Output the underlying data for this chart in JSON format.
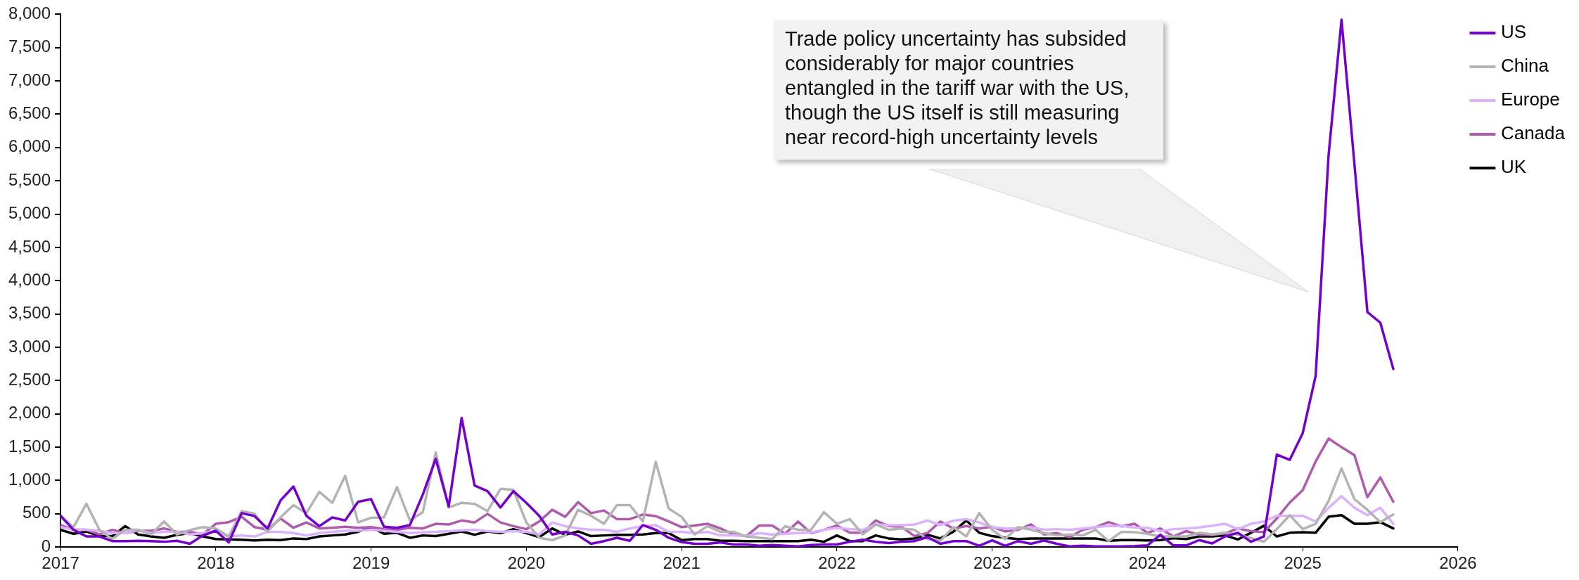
{
  "chart_data": {
    "type": "line",
    "x": [
      "2017-01",
      "2017-02",
      "2017-03",
      "2017-04",
      "2017-05",
      "2017-06",
      "2017-07",
      "2017-08",
      "2017-09",
      "2017-10",
      "2017-11",
      "2017-12",
      "2018-01",
      "2018-02",
      "2018-03",
      "2018-04",
      "2018-05",
      "2018-06",
      "2018-07",
      "2018-08",
      "2018-09",
      "2018-10",
      "2018-11",
      "2018-12",
      "2019-01",
      "2019-02",
      "2019-03",
      "2019-04",
      "2019-05",
      "2019-06",
      "2019-07",
      "2019-08",
      "2019-09",
      "2019-10",
      "2019-11",
      "2019-12",
      "2020-01",
      "2020-02",
      "2020-03",
      "2020-04",
      "2020-05",
      "2020-06",
      "2020-07",
      "2020-08",
      "2020-09",
      "2020-10",
      "2020-11",
      "2020-12",
      "2021-01",
      "2021-02",
      "2021-03",
      "2021-04",
      "2021-05",
      "2021-06",
      "2021-07",
      "2021-08",
      "2021-09",
      "2021-10",
      "2021-11",
      "2021-12",
      "2022-01",
      "2022-02",
      "2022-03",
      "2022-04",
      "2022-05",
      "2022-06",
      "2022-07",
      "2022-08",
      "2022-09",
      "2022-10",
      "2022-11",
      "2022-12",
      "2023-01",
      "2023-02",
      "2023-03",
      "2023-04",
      "2023-05",
      "2023-06",
      "2023-07",
      "2023-08",
      "2023-09",
      "2023-10",
      "2023-11",
      "2023-12",
      "2024-01",
      "2024-02",
      "2024-03",
      "2024-04",
      "2024-05",
      "2024-06",
      "2024-07",
      "2024-08",
      "2024-09",
      "2024-10",
      "2024-11",
      "2024-12",
      "2025-01",
      "2025-02",
      "2025-03",
      "2025-04",
      "2025-05",
      "2025-06",
      "2025-07",
      "2025-08"
    ],
    "series": [
      {
        "name": "US",
        "color": "#7400cc",
        "values": [
          470,
          260,
          160,
          160,
          90,
          90,
          95,
          90,
          80,
          95,
          50,
          175,
          245,
          70,
          510,
          465,
          280,
          700,
          910,
          470,
          315,
          445,
          400,
          680,
          720,
          305,
          290,
          330,
          790,
          1325,
          610,
          1940,
          925,
          840,
          595,
          840,
          665,
          470,
          190,
          230,
          175,
          50,
          90,
          140,
          95,
          330,
          260,
          140,
          75,
          50,
          50,
          70,
          40,
          40,
          20,
          30,
          20,
          10,
          30,
          40,
          40,
          80,
          110,
          80,
          60,
          80,
          90,
          150,
          50,
          90,
          90,
          20,
          100,
          20,
          90,
          50,
          100,
          50,
          10,
          20,
          10,
          10,
          10,
          15,
          25,
          185,
          25,
          25,
          105,
          55,
          160,
          215,
          80,
          160,
          1390,
          1310,
          1710,
          2570,
          5885,
          7920,
          5750,
          3530,
          3370,
          2675
        ]
      },
      {
        "name": "China",
        "color": "#b3b3b3",
        "values": [
          470,
          300,
          650,
          260,
          120,
          260,
          260,
          190,
          385,
          190,
          255,
          300,
          280,
          160,
          540,
          500,
          230,
          445,
          630,
          510,
          830,
          665,
          1070,
          370,
          440,
          445,
          900,
          400,
          525,
          1420,
          595,
          665,
          650,
          540,
          875,
          860,
          370,
          140,
          105,
          175,
          560,
          470,
          350,
          630,
          630,
          385,
          1280,
          580,
          455,
          190,
          315,
          230,
          230,
          160,
          140,
          120,
          315,
          260,
          260,
          525,
          350,
          420,
          190,
          340,
          260,
          280,
          260,
          120,
          95,
          300,
          160,
          510,
          260,
          120,
          300,
          260,
          210,
          175,
          190,
          175,
          260,
          90,
          230,
          225,
          200,
          160,
          160,
          160,
          215,
          190,
          215,
          190,
          135,
          80,
          270,
          480,
          270,
          350,
          695,
          1180,
          720,
          560,
          375,
          490
        ]
      },
      {
        "name": "Europe",
        "color": "#dab0ff",
        "values": [
          300,
          260,
          260,
          245,
          210,
          210,
          260,
          210,
          230,
          230,
          190,
          210,
          245,
          160,
          175,
          160,
          230,
          230,
          210,
          175,
          210,
          230,
          245,
          245,
          260,
          245,
          230,
          210,
          220,
          230,
          240,
          250,
          260,
          240,
          230,
          240,
          230,
          190,
          370,
          315,
          280,
          260,
          260,
          230,
          280,
          315,
          330,
          230,
          230,
          210,
          230,
          175,
          175,
          165,
          210,
          190,
          200,
          210,
          220,
          260,
          290,
          270,
          260,
          340,
          330,
          330,
          340,
          400,
          330,
          395,
          420,
          370,
          300,
          280,
          280,
          300,
          260,
          270,
          260,
          280,
          300,
          320,
          315,
          295,
          290,
          240,
          270,
          280,
          295,
          320,
          350,
          270,
          350,
          385,
          470,
          470,
          470,
          385,
          590,
          765,
          590,
          480,
          590,
          350
        ]
      },
      {
        "name": "Canada",
        "color": "#b05aae",
        "values": [
          330,
          260,
          260,
          190,
          260,
          210,
          245,
          245,
          280,
          230,
          230,
          190,
          350,
          375,
          455,
          300,
          260,
          430,
          290,
          370,
          280,
          290,
          305,
          290,
          300,
          270,
          260,
          290,
          280,
          350,
          340,
          400,
          370,
          500,
          370,
          315,
          270,
          385,
          560,
          455,
          675,
          510,
          550,
          420,
          420,
          490,
          465,
          385,
          300,
          325,
          350,
          280,
          190,
          165,
          325,
          325,
          200,
          385,
          210,
          260,
          325,
          215,
          215,
          400,
          315,
          305,
          165,
          210,
          385,
          280,
          315,
          280,
          305,
          235,
          260,
          340,
          190,
          210,
          150,
          260,
          300,
          375,
          310,
          350,
          215,
          280,
          160,
          240,
          185,
          185,
          205,
          280,
          240,
          225,
          430,
          670,
          855,
          1285,
          1630,
          1500,
          1380,
          750,
          1045,
          680
        ]
      },
      {
        "name": "UK",
        "color": "#000000",
        "values": [
          260,
          200,
          235,
          165,
          165,
          315,
          190,
          160,
          140,
          185,
          210,
          160,
          120,
          115,
          110,
          100,
          110,
          105,
          130,
          120,
          160,
          175,
          190,
          230,
          300,
          200,
          215,
          140,
          175,
          165,
          200,
          235,
          185,
          235,
          210,
          270,
          210,
          150,
          280,
          185,
          235,
          165,
          175,
          185,
          185,
          190,
          210,
          210,
          105,
          120,
          120,
          95,
          95,
          90,
          90,
          90,
          90,
          90,
          110,
          80,
          175,
          90,
          90,
          175,
          130,
          115,
          130,
          185,
          130,
          230,
          400,
          215,
          165,
          140,
          120,
          130,
          130,
          130,
          130,
          130,
          130,
          95,
          105,
          105,
          100,
          105,
          135,
          120,
          160,
          160,
          175,
          115,
          215,
          320,
          160,
          215,
          225,
          215,
          455,
          480,
          350,
          350,
          375,
          280
        ]
      }
    ],
    "xlim": [
      "2017",
      "2026"
    ],
    "xticks": [
      "2017",
      "2018",
      "2019",
      "2020",
      "2021",
      "2022",
      "2023",
      "2024",
      "2025",
      "2026"
    ],
    "ylim": [
      0,
      8000
    ],
    "yticks": [
      0,
      500,
      {
        "value": 1000,
        "label": "1,000"
      },
      {
        "value": 1500,
        "label": "1,500"
      },
      {
        "value": 2000,
        "label": "2,000"
      },
      {
        "value": 2500,
        "label": "2,500"
      },
      {
        "value": 3000,
        "label": "3,000"
      },
      {
        "value": 3500,
        "label": "3,500"
      },
      {
        "value": 4000,
        "label": "4,000"
      },
      {
        "value": 4500,
        "label": "4,500"
      },
      {
        "value": 5000,
        "label": "5,000"
      },
      {
        "value": 5500,
        "label": "5,500"
      },
      {
        "value": 6000,
        "label": "6,000"
      },
      {
        "value": 6500,
        "label": "6,500"
      },
      {
        "value": 7000,
        "label": "7,000"
      },
      {
        "value": 7500,
        "label": "7,500"
      },
      {
        "value": 8000,
        "label": "8,000"
      }
    ],
    "legend": "top right",
    "marker": "none",
    "annotations": [
      "Trade policy uncertainty has subsided considerably for major countries entangled in the tariff war with the US, though the US itself is still measuring near record-high uncertainty levels"
    ]
  }
}
